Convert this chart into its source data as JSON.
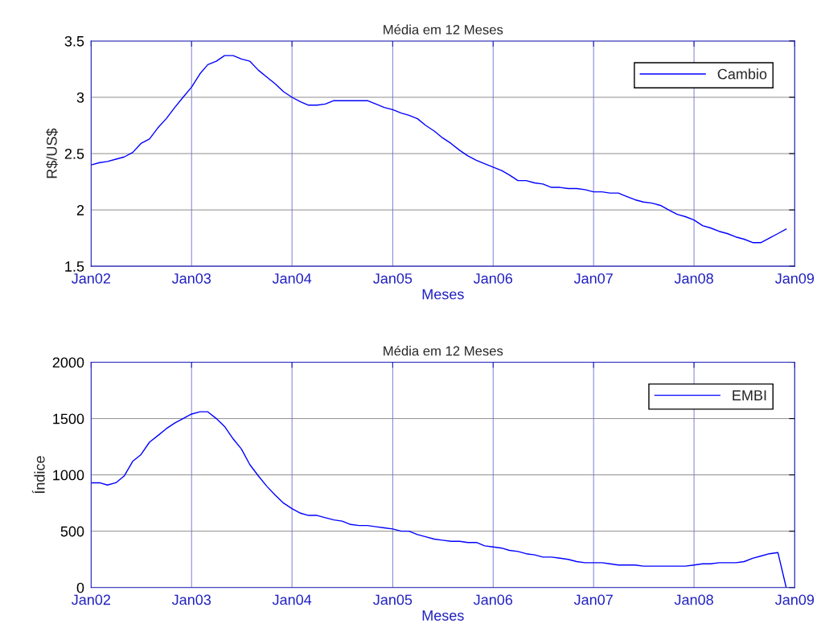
{
  "chart_data": [
    {
      "type": "line",
      "title": "Média em 12 Meses",
      "xlabel": "Meses",
      "ylabel": "R$/US$",
      "xlim": [
        "2002-01",
        "2009-01"
      ],
      "xticks": [
        {
          "value": "2002-01",
          "label": "Jan02"
        },
        {
          "value": "2003-01",
          "label": "Jan03"
        },
        {
          "value": "2004-01",
          "label": "Jan04"
        },
        {
          "value": "2005-01",
          "label": "Jan05"
        },
        {
          "value": "2006-01",
          "label": "Jan06"
        },
        {
          "value": "2007-01",
          "label": "Jan07"
        },
        {
          "value": "2008-01",
          "label": "Jan08"
        },
        {
          "value": "2009-01",
          "label": "Jan09"
        }
      ],
      "ylim": [
        1.5,
        3.5
      ],
      "yticks": [
        1.5,
        2,
        2.5,
        3,
        3.5
      ],
      "grid": true,
      "legend": "top right",
      "x": [
        "2002-01",
        "2002-02",
        "2002-03",
        "2002-04",
        "2002-05",
        "2002-06",
        "2002-07",
        "2002-08",
        "2002-09",
        "2002-10",
        "2002-11",
        "2002-12",
        "2003-01",
        "2003-02",
        "2003-03",
        "2003-04",
        "2003-05",
        "2003-06",
        "2003-07",
        "2003-08",
        "2003-09",
        "2003-10",
        "2003-11",
        "2003-12",
        "2004-01",
        "2004-02",
        "2004-03",
        "2004-04",
        "2004-05",
        "2004-06",
        "2004-07",
        "2004-08",
        "2004-09",
        "2004-10",
        "2004-11",
        "2004-12",
        "2005-01",
        "2005-02",
        "2005-03",
        "2005-04",
        "2005-05",
        "2005-06",
        "2005-07",
        "2005-08",
        "2005-09",
        "2005-10",
        "2005-11",
        "2005-12",
        "2006-01",
        "2006-02",
        "2006-03",
        "2006-04",
        "2006-05",
        "2006-06",
        "2006-07",
        "2006-08",
        "2006-09",
        "2006-10",
        "2006-11",
        "2006-12",
        "2007-01",
        "2007-02",
        "2007-03",
        "2007-04",
        "2007-05",
        "2007-06",
        "2007-07",
        "2007-08",
        "2007-09",
        "2007-10",
        "2007-11",
        "2007-12",
        "2008-01",
        "2008-02",
        "2008-03",
        "2008-04",
        "2008-05",
        "2008-06",
        "2008-07",
        "2008-08",
        "2008-09",
        "2008-10",
        "2008-11",
        "2008-12"
      ],
      "series": [
        {
          "name": "Cambio",
          "color": "#0000ff",
          "values": [
            2.4,
            2.42,
            2.43,
            2.45,
            2.47,
            2.51,
            2.59,
            2.63,
            2.73,
            2.81,
            2.91,
            3.0,
            3.09,
            3.21,
            3.29,
            3.32,
            3.37,
            3.37,
            3.34,
            3.32,
            3.24,
            3.18,
            3.12,
            3.05,
            3.0,
            2.96,
            2.93,
            2.93,
            2.94,
            2.97,
            2.97,
            2.97,
            2.97,
            2.97,
            2.94,
            2.91,
            2.89,
            2.86,
            2.84,
            2.81,
            2.75,
            2.7,
            2.64,
            2.59,
            2.53,
            2.48,
            2.44,
            2.41,
            2.38,
            2.35,
            2.31,
            2.26,
            2.26,
            2.24,
            2.23,
            2.2,
            2.2,
            2.19,
            2.19,
            2.18,
            2.16,
            2.16,
            2.15,
            2.15,
            2.12,
            2.09,
            2.07,
            2.06,
            2.04,
            2.0,
            1.96,
            1.94,
            1.91,
            1.86,
            1.84,
            1.81,
            1.79,
            1.76,
            1.74,
            1.71,
            1.71,
            1.75,
            1.79,
            1.83
          ]
        }
      ]
    },
    {
      "type": "line",
      "title": "Média em 12 Meses",
      "xlabel": "Meses",
      "ylabel": "Índice",
      "xlim": [
        "2002-01",
        "2009-01"
      ],
      "xticks": [
        {
          "value": "2002-01",
          "label": "Jan02"
        },
        {
          "value": "2003-01",
          "label": "Jan03"
        },
        {
          "value": "2004-01",
          "label": "Jan04"
        },
        {
          "value": "2005-01",
          "label": "Jan05"
        },
        {
          "value": "2006-01",
          "label": "Jan06"
        },
        {
          "value": "2007-01",
          "label": "Jan07"
        },
        {
          "value": "2008-01",
          "label": "Jan08"
        },
        {
          "value": "2009-01",
          "label": "Jan09"
        }
      ],
      "ylim": [
        0,
        2000
      ],
      "yticks": [
        0,
        500,
        1000,
        1500,
        2000
      ],
      "grid": true,
      "legend": "top right",
      "x": [
        "2002-01",
        "2002-02",
        "2002-03",
        "2002-04",
        "2002-05",
        "2002-06",
        "2002-07",
        "2002-08",
        "2002-09",
        "2002-10",
        "2002-11",
        "2002-12",
        "2003-01",
        "2003-02",
        "2003-03",
        "2003-04",
        "2003-05",
        "2003-06",
        "2003-07",
        "2003-08",
        "2003-09",
        "2003-10",
        "2003-11",
        "2003-12",
        "2004-01",
        "2004-02",
        "2004-03",
        "2004-04",
        "2004-05",
        "2004-06",
        "2004-07",
        "2004-08",
        "2004-09",
        "2004-10",
        "2004-11",
        "2004-12",
        "2005-01",
        "2005-02",
        "2005-03",
        "2005-04",
        "2005-05",
        "2005-06",
        "2005-07",
        "2005-08",
        "2005-09",
        "2005-10",
        "2005-11",
        "2005-12",
        "2006-01",
        "2006-02",
        "2006-03",
        "2006-04",
        "2006-05",
        "2006-06",
        "2006-07",
        "2006-08",
        "2006-09",
        "2006-10",
        "2006-11",
        "2006-12",
        "2007-01",
        "2007-02",
        "2007-03",
        "2007-04",
        "2007-05",
        "2007-06",
        "2007-07",
        "2007-08",
        "2007-09",
        "2007-10",
        "2007-11",
        "2007-12",
        "2008-01",
        "2008-02",
        "2008-03",
        "2008-04",
        "2008-05",
        "2008-06",
        "2008-07",
        "2008-08",
        "2008-09",
        "2008-10",
        "2008-11",
        "2008-12"
      ],
      "series": [
        {
          "name": "EMBI",
          "color": "#0000ff",
          "values": [
            930,
            930,
            910,
            930,
            990,
            1120,
            1180,
            1290,
            1350,
            1410,
            1460,
            1500,
            1540,
            1560,
            1560,
            1500,
            1430,
            1320,
            1230,
            1090,
            990,
            900,
            820,
            750,
            700,
            660,
            640,
            640,
            620,
            600,
            590,
            560,
            550,
            550,
            540,
            530,
            520,
            500,
            500,
            470,
            450,
            430,
            420,
            410,
            410,
            400,
            400,
            370,
            360,
            350,
            330,
            320,
            300,
            290,
            270,
            270,
            260,
            250,
            230,
            220,
            220,
            220,
            210,
            200,
            200,
            200,
            190,
            190,
            190,
            190,
            190,
            190,
            200,
            210,
            210,
            220,
            220,
            220,
            230,
            260,
            280,
            300,
            310,
            0
          ]
        }
      ]
    }
  ]
}
